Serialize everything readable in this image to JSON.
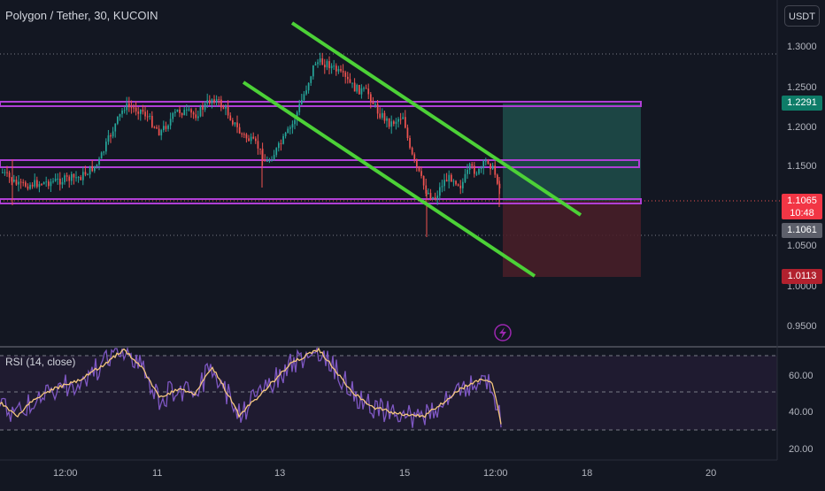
{
  "header": {
    "title": "Polygon / Tether, 30, KUCOIN",
    "currency_button": "USDT"
  },
  "price_axis": {
    "ticks": [
      "1.3000",
      "1.2500",
      "1.2000",
      "1.1500",
      "1.0500",
      "1.0000",
      "0.9500"
    ]
  },
  "price_tags": {
    "take_profit": "1.2291",
    "current_price": "1.1065",
    "countdown": "10:48",
    "entry": "1.1061",
    "stop_loss": "1.0113"
  },
  "rsi": {
    "label": "RSI (14, close)",
    "ticks": [
      "60.00",
      "40.00",
      "20.00"
    ]
  },
  "time_axis": {
    "ticks": [
      "12:00",
      "11",
      "13",
      "15",
      "12:00",
      "18",
      "20"
    ]
  },
  "colors": {
    "background": "#131722",
    "candle_up": "#26a69a",
    "candle_down": "#ef5350",
    "zone_border": "#9c27b0",
    "trend_line": "#4cd137",
    "profit_zone": "#1e4d4a",
    "loss_zone": "#4a1f28",
    "rsi_line": "#7e57c2",
    "rsi_ma": "#f5c77e"
  },
  "icons": {
    "alert": "lightning-icon"
  }
}
